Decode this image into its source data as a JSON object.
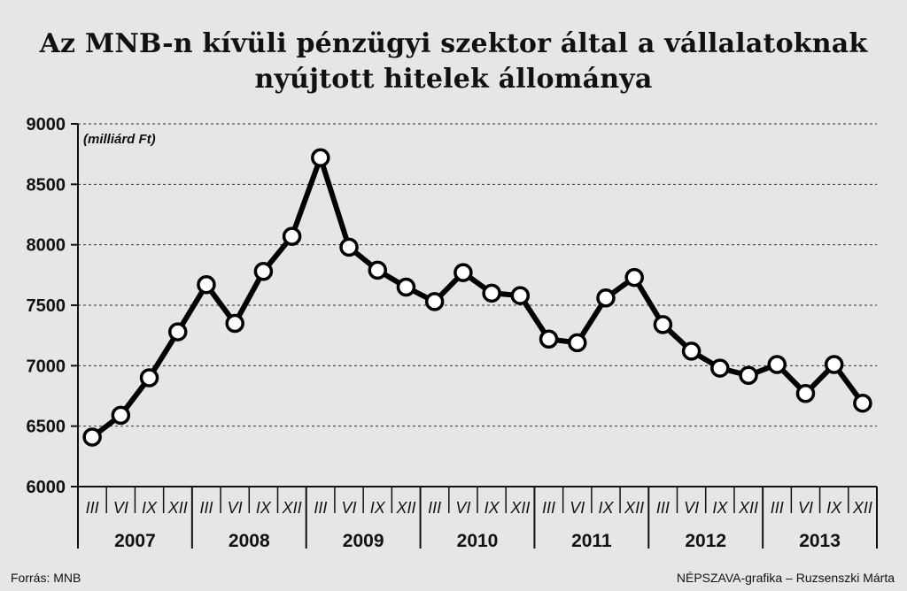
{
  "title_lines": [
    "Az MNB-n kívüli pénzügyi szektor által a vállalatoknak",
    "nyújtott hitelek állománya"
  ],
  "source": "Forrás: MNB",
  "credit": "NÉPSZAVA-grafika – Ruzsenszki Márta",
  "chart_data": {
    "type": "line",
    "unit_label": "(milliárd Ft)",
    "ylim": [
      6000,
      9000
    ],
    "yticks": [
      "9000",
      "8500",
      "8000",
      "7500",
      "7000",
      "6500",
      "6000"
    ],
    "grid": "horizontal dotted",
    "years": [
      "2007",
      "2008",
      "2009",
      "2010",
      "2011",
      "2012",
      "2013"
    ],
    "quarters": [
      "III",
      "VI",
      "IX",
      "XII"
    ],
    "categories": [
      "2007 III",
      "2007 VI",
      "2007 IX",
      "2007 XII",
      "2008 III",
      "2008 VI",
      "2008 IX",
      "2008 XII",
      "2009 III",
      "2009 VI",
      "2009 IX",
      "2009 XII",
      "2010 III",
      "2010 VI",
      "2010 IX",
      "2010 XII",
      "2011 III",
      "2011 VI",
      "2011 IX",
      "2011 XII",
      "2012 III",
      "2012 VI",
      "2012 IX",
      "2012 XII",
      "2013 III",
      "2013 VI",
      "2013 IX",
      "2013 XII"
    ],
    "series": [
      {
        "values": [
          6410,
          6590,
          6900,
          7280,
          7670,
          7350,
          7780,
          8070,
          8720,
          7980,
          7790,
          7650,
          7530,
          7770,
          7600,
          7580,
          7220,
          7190,
          7560,
          7730,
          7340,
          7120,
          6980,
          6920,
          7010,
          6770,
          7010,
          6690
        ]
      }
    ]
  }
}
